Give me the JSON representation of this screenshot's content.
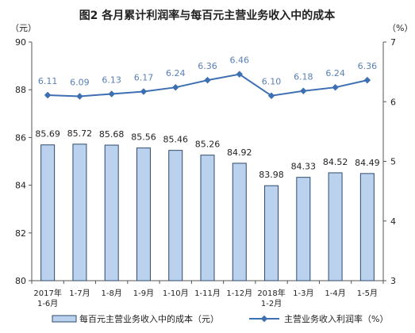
{
  "chart_data": {
    "type": "bar",
    "title": "图2 各月累计利润率与每百元主营业务收入中的成本",
    "left_axis_unit": "（元）",
    "right_axis_unit": "（%）",
    "categories": [
      [
        "2017年",
        "1-6月"
      ],
      [
        "1-7月"
      ],
      [
        "1-8月"
      ],
      [
        "1-9月"
      ],
      [
        "1-10月"
      ],
      [
        "1-11月"
      ],
      [
        "1-12月"
      ],
      [
        "2018年",
        "1-2月"
      ],
      [
        "1-3月"
      ],
      [
        "1-4月"
      ],
      [
        "1-5月"
      ]
    ],
    "series": [
      {
        "name": "每百元主营业务收入中的成本（元）",
        "type": "bar",
        "axis": "left",
        "values": [
          85.69,
          85.72,
          85.68,
          85.56,
          85.46,
          85.26,
          84.92,
          83.98,
          84.33,
          84.52,
          84.49
        ],
        "labels": [
          "85.69",
          "85.72",
          "85.68",
          "85.56",
          "85.46",
          "85.26",
          "84.92",
          "83.98",
          "84.33",
          "84.52",
          "84.49"
        ]
      },
      {
        "name": "主营业务收入利润率（%）",
        "type": "line",
        "axis": "right",
        "values": [
          6.11,
          6.09,
          6.13,
          6.17,
          6.24,
          6.36,
          6.46,
          6.1,
          6.18,
          6.24,
          6.36
        ],
        "labels": [
          "6.11",
          "6.09",
          "6.13",
          "6.17",
          "6.24",
          "6.36",
          "6.46",
          "6.10",
          "6.18",
          "6.24",
          "6.36"
        ]
      }
    ],
    "left_axis": {
      "min": 80,
      "max": 90,
      "ticks": [
        "80",
        "82",
        "84",
        "86",
        "88",
        "90"
      ]
    },
    "right_axis": {
      "min": 3,
      "max": 7,
      "ticks": [
        "3",
        "4",
        "5",
        "6",
        "7"
      ]
    },
    "grid": false,
    "legend_position": "bottom",
    "colors": {
      "bar_fill": "#bad2ee",
      "bar_stroke": "#2f4a6e",
      "line": "#3d6fb3",
      "label": "#5a7fb5",
      "axis": "#555555",
      "text": "#222222"
    }
  }
}
